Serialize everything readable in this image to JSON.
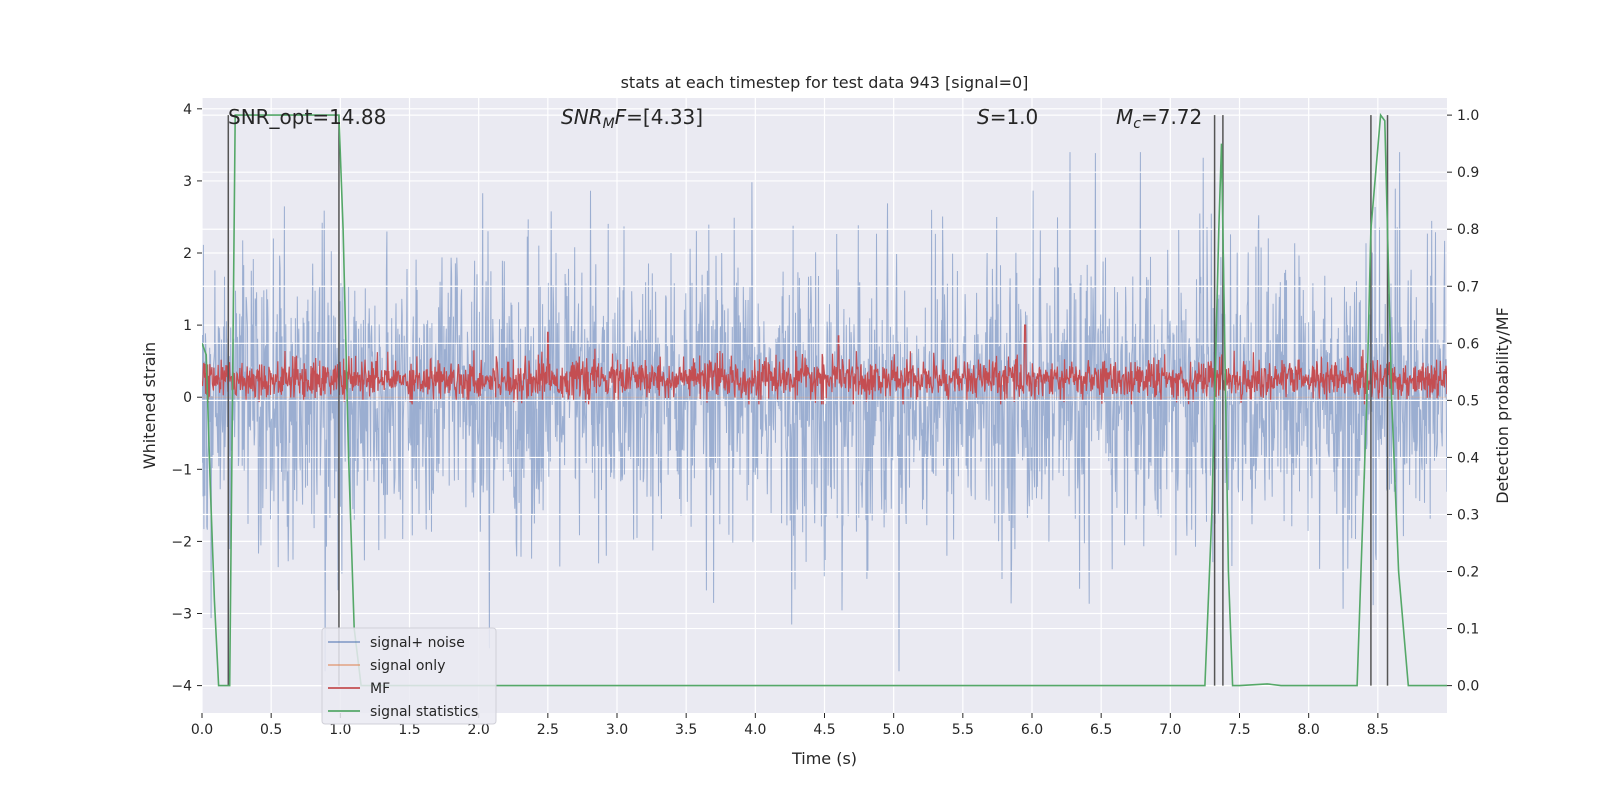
{
  "chart_data": {
    "type": "line",
    "title": "stats at each timestep for test data 943 [signal=0]",
    "xlabel": "Time (s)",
    "ylabel": "Whitened strain",
    "y2label": "Detection probability/MF",
    "xlim": [
      0.0,
      9.0
    ],
    "ylim": [
      -4.38,
      4.15
    ],
    "y2lim": [
      -0.048,
      1.03
    ],
    "xticks": [
      0.0,
      0.5,
      1.0,
      1.5,
      2.0,
      2.5,
      3.0,
      3.5,
      4.0,
      4.5,
      5.0,
      5.5,
      6.0,
      6.5,
      7.0,
      7.5,
      8.0,
      8.5
    ],
    "xtick_labels": [
      "0.0",
      "0.5",
      "1.0",
      "1.5",
      "2.0",
      "2.5",
      "3.0",
      "3.5",
      "4.0",
      "4.5",
      "5.0",
      "5.5",
      "6.0",
      "6.5",
      "7.0",
      "7.5",
      "8.0",
      "8.5"
    ],
    "yticks": [
      -4,
      -3,
      -2,
      -1,
      0,
      1,
      2,
      3,
      4
    ],
    "ytick_labels": [
      "−4",
      "−3",
      "−2",
      "−1",
      "0",
      "1",
      "2",
      "3",
      "4"
    ],
    "y2ticks": [
      0.0,
      0.1,
      0.2,
      0.3,
      0.4,
      0.5,
      0.6,
      0.7,
      0.8,
      0.9,
      1.0
    ],
    "y2tick_labels": [
      "0.0",
      "0.1",
      "0.2",
      "0.3",
      "0.4",
      "0.5",
      "0.6",
      "0.7",
      "0.8",
      "0.9",
      "1.0"
    ],
    "grid": true,
    "legend_position": "lower-left",
    "annotations": [
      {
        "label": "SNR_opt",
        "value": "=14.88",
        "x": 0.2
      },
      {
        "label": "SNR",
        "label_sub": "M",
        "label_suffix": "F",
        "value": "=[4.33]",
        "x": 2.6
      },
      {
        "label": "S",
        "value": "=1.0",
        "x": 5.6
      },
      {
        "label": "M",
        "label_sub": "c",
        "value": "=7.72",
        "x": 6.6
      }
    ],
    "series": [
      {
        "name": "signal+ noise",
        "color": "#4c72b0",
        "opacity": 0.5,
        "axis": "left",
        "band_y": [
          -1.6,
          1.5
        ],
        "peaks_y": [
          -3.8,
          3.4
        ],
        "seed": 943
      },
      {
        "name": "signal only",
        "color": "#dd8452",
        "axis": "left",
        "values": "flat",
        "level": 0.0
      },
      {
        "name": "MF",
        "color": "#c44e52",
        "axis": "left",
        "center_y": 0.25,
        "band_y": [
          0.0,
          0.6
        ],
        "spikes": [
          {
            "x": 2.5,
            "y": 0.9
          },
          {
            "x": 4.6,
            "y": 0.85
          },
          {
            "x": 5.95,
            "y": 1.0
          }
        ]
      },
      {
        "name": "signal statistics",
        "color": "#55a868",
        "axis": "right",
        "x": [
          0.0,
          0.03,
          0.06,
          0.09,
          0.12,
          0.18,
          0.2,
          0.24,
          0.28,
          0.35,
          0.6,
          0.9,
          0.99,
          1.02,
          1.06,
          1.1,
          1.15,
          7.0,
          7.25,
          7.3,
          7.35,
          7.37,
          7.42,
          7.45,
          7.5,
          7.7,
          7.8,
          8.35,
          8.42,
          8.45,
          8.52,
          8.55,
          8.6,
          8.65,
          8.72,
          8.8,
          9.0
        ],
        "values": [
          0.6,
          0.58,
          0.35,
          0.15,
          0.0,
          0.0,
          0.0,
          1.0,
          1.0,
          1.0,
          1.0,
          1.0,
          1.0,
          0.8,
          0.4,
          0.1,
          0.0,
          0.0,
          0.0,
          0.3,
          0.8,
          0.95,
          0.2,
          0.0,
          0.0,
          0.003,
          0.0,
          0.0,
          0.5,
          0.8,
          1.0,
          0.99,
          0.5,
          0.2,
          0.0,
          0.0,
          0.0
        ]
      },
      {
        "name": "markers",
        "color": "#555555",
        "axis": "right",
        "x": [
          0.19,
          0.99,
          7.32,
          7.38,
          8.45,
          8.57
        ],
        "top": 1.0
      }
    ]
  },
  "legend": [
    {
      "label": "signal+ noise",
      "color": "#4c72b0",
      "opacity": 0.6
    },
    {
      "label": "signal only",
      "color": "#dd8452",
      "opacity": 0.6
    },
    {
      "label": "MF",
      "color": "#c44e52",
      "opacity": 1.0
    },
    {
      "label": "signal statistics",
      "color": "#55a868",
      "opacity": 1.0
    }
  ]
}
